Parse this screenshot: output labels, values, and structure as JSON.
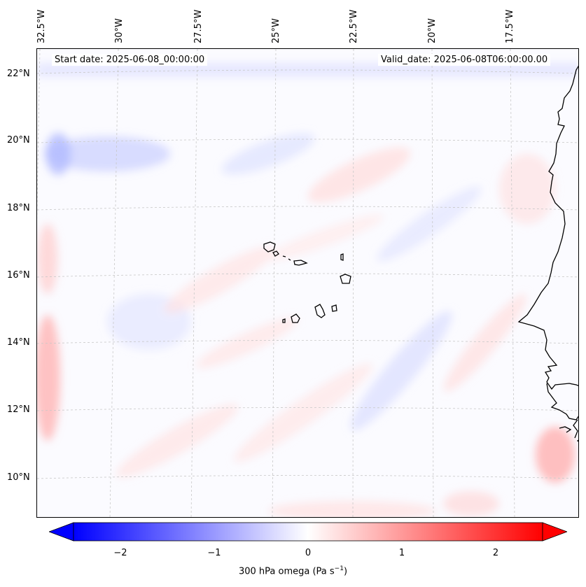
{
  "header": {
    "start_date": "Start date: 2025-06-08_00:00:00",
    "valid_date": "Valid_date: 2025-06-08T06:00:00.00"
  },
  "map": {
    "lon_labels": [
      "32.5°W",
      "30°W",
      "27.5°W",
      "25°W",
      "22.5°W",
      "20°W",
      "17.5°W"
    ],
    "lat_labels": [
      "22°N",
      "20°N",
      "18°N",
      "16°N",
      "14°N",
      "12°N",
      "10°N"
    ],
    "field_colors": {
      "negative": "#0000ff",
      "neutral": "#ffffff",
      "positive": "#ff0000"
    }
  },
  "colorbar": {
    "ticks": [
      "−2",
      "−1",
      "0",
      "1",
      "2"
    ],
    "label": "300 hPa omega (Pa s",
    "label_sup": "−1",
    "label_close": ")"
  }
}
